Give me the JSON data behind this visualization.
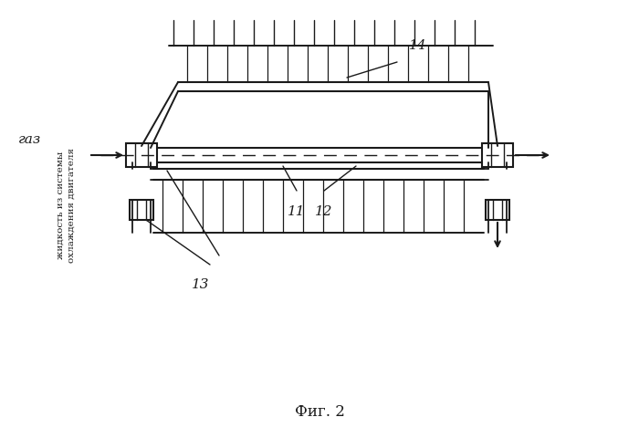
{
  "title": "Фиг. 2",
  "label_gaz": "газ",
  "label_liquid": "жидкость из системы\nохлаждения двигателя",
  "num_11": "11",
  "num_12": "12",
  "num_13": "13",
  "num_14": "14",
  "bg_color": "#ffffff",
  "line_color": "#1a1a1a"
}
